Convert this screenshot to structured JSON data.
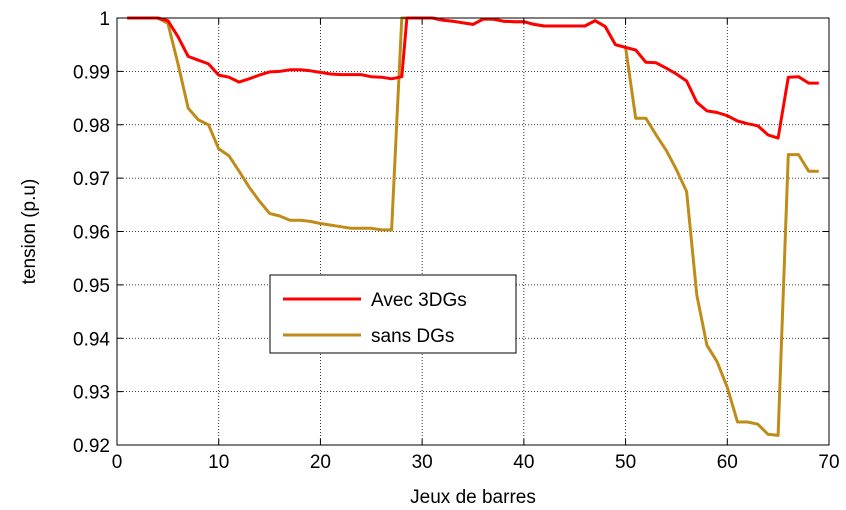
{
  "chart_data": {
    "type": "line",
    "title": "",
    "xlabel": "Jeux de barres",
    "ylabel": "tension (p.u)",
    "xlim": [
      0,
      70
    ],
    "ylim": [
      0.92,
      1.0
    ],
    "xticks": [
      0,
      10,
      20,
      30,
      40,
      50,
      60,
      70
    ],
    "yticks": [
      0.92,
      0.93,
      0.94,
      0.95,
      0.96,
      0.97,
      0.98,
      0.99,
      1.0
    ],
    "xtick_labels": [
      "0",
      "10",
      "20",
      "30",
      "40",
      "50",
      "60",
      "70"
    ],
    "ytick_labels": [
      "0.92",
      "0.93",
      "0.94",
      "0.95",
      "0.96",
      "0.97",
      "0.98",
      "0.99",
      "1"
    ],
    "grid": true,
    "legend_position": "center",
    "series": [
      {
        "name": "Avec 3DGs",
        "color": "#ff0000",
        "points": [
          [
            1,
            1.0
          ],
          [
            2,
            1.0
          ],
          [
            3,
            1.0
          ],
          [
            4,
            1.0
          ],
          [
            5,
            0.9995
          ],
          [
            6,
            0.9965
          ],
          [
            7,
            0.9928
          ],
          [
            8,
            0.9921
          ],
          [
            9,
            0.9914
          ],
          [
            10,
            0.9893
          ],
          [
            11,
            0.9889
          ],
          [
            12,
            0.988
          ],
          [
            13,
            0.9886
          ],
          [
            14,
            0.9893
          ],
          [
            15,
            0.9899
          ],
          [
            16,
            0.99
          ],
          [
            17,
            0.9903
          ],
          [
            18,
            0.9903
          ],
          [
            19,
            0.9901
          ],
          [
            20,
            0.9898
          ],
          [
            21,
            0.9895
          ],
          [
            22,
            0.9894
          ],
          [
            23,
            0.9894
          ],
          [
            24,
            0.9894
          ],
          [
            25,
            0.989
          ],
          [
            26,
            0.9889
          ],
          [
            27,
            0.9886
          ],
          [
            28,
            0.989
          ],
          [
            28.5,
            1.0
          ],
          [
            29,
            1.0
          ],
          [
            30,
            1.0
          ],
          [
            31,
            1.0
          ],
          [
            32,
            0.9996
          ],
          [
            33,
            0.9994
          ],
          [
            34,
            0.9991
          ],
          [
            35,
            0.9988
          ],
          [
            36,
            0.9998
          ],
          [
            37,
            0.9998
          ],
          [
            38,
            0.9994
          ],
          [
            39,
            0.9993
          ],
          [
            40,
            0.9993
          ],
          [
            41,
            0.9988
          ],
          [
            42,
            0.9985
          ],
          [
            43,
            0.9985
          ],
          [
            44,
            0.9985
          ],
          [
            45,
            0.9985
          ],
          [
            46,
            0.9985
          ],
          [
            47,
            0.9995
          ],
          [
            48,
            0.9984
          ],
          [
            49,
            0.995
          ],
          [
            50,
            0.9945
          ],
          [
            51,
            0.994
          ],
          [
            52,
            0.9917
          ],
          [
            53,
            0.9916
          ],
          [
            54,
            0.9906
          ],
          [
            55,
            0.9895
          ],
          [
            56,
            0.9882
          ],
          [
            57,
            0.9842
          ],
          [
            58,
            0.9826
          ],
          [
            59,
            0.9823
          ],
          [
            60,
            0.9817
          ],
          [
            61,
            0.9807
          ],
          [
            62,
            0.9802
          ],
          [
            63,
            0.9798
          ],
          [
            64,
            0.9781
          ],
          [
            65,
            0.9775
          ],
          [
            66,
            0.9889
          ],
          [
            67,
            0.989
          ],
          [
            68,
            0.9878
          ],
          [
            69,
            0.9878
          ]
        ]
      },
      {
        "name": "sans DGs",
        "color": "#bf8c1a",
        "points": [
          [
            1,
            1.0
          ],
          [
            2,
            1.0
          ],
          [
            3,
            1.0
          ],
          [
            4,
            1.0
          ],
          [
            5,
            0.999
          ],
          [
            6,
            0.9914
          ],
          [
            7,
            0.9831
          ],
          [
            8,
            0.9809
          ],
          [
            9,
            0.98
          ],
          [
            10,
            0.9755
          ],
          [
            11,
            0.9742
          ],
          [
            12,
            0.9713
          ],
          [
            13,
            0.9683
          ],
          [
            14,
            0.9657
          ],
          [
            15,
            0.9634
          ],
          [
            16,
            0.9629
          ],
          [
            17,
            0.9621
          ],
          [
            18,
            0.9621
          ],
          [
            19,
            0.9619
          ],
          [
            20,
            0.9615
          ],
          [
            21,
            0.9612
          ],
          [
            22,
            0.9609
          ],
          [
            23,
            0.9606
          ],
          [
            24,
            0.9606
          ],
          [
            25,
            0.9606
          ],
          [
            26,
            0.9603
          ],
          [
            27,
            0.9603
          ],
          [
            28,
            1.0
          ],
          [
            29,
            1.0
          ],
          [
            30,
            1.0
          ],
          [
            31,
            1.0
          ],
          [
            32,
            0.9996
          ],
          [
            33,
            0.9994
          ],
          [
            34,
            0.9991
          ],
          [
            35,
            0.9988
          ],
          [
            36,
            0.9998
          ],
          [
            37,
            0.9998
          ],
          [
            38,
            0.9994
          ],
          [
            39,
            0.9993
          ],
          [
            40,
            0.9993
          ],
          [
            41,
            0.9988
          ],
          [
            42,
            0.9985
          ],
          [
            43,
            0.9985
          ],
          [
            44,
            0.9985
          ],
          [
            45,
            0.9985
          ],
          [
            46,
            0.9985
          ],
          [
            47,
            0.9995
          ],
          [
            48,
            0.9984
          ],
          [
            49,
            0.995
          ],
          [
            50,
            0.9945
          ],
          [
            51,
            0.9812
          ],
          [
            52,
            0.9812
          ],
          [
            53,
            0.9781
          ],
          [
            54,
            0.9752
          ],
          [
            55,
            0.9716
          ],
          [
            56,
            0.9675
          ],
          [
            57,
            0.9481
          ],
          [
            58,
            0.9387
          ],
          [
            59,
            0.9356
          ],
          [
            60,
            0.9308
          ],
          [
            61,
            0.9243
          ],
          [
            62,
            0.9243
          ],
          [
            63,
            0.9239
          ],
          [
            64,
            0.922
          ],
          [
            65,
            0.9218
          ],
          [
            66,
            0.9744
          ],
          [
            67,
            0.9744
          ],
          [
            68,
            0.9713
          ],
          [
            69,
            0.9713
          ]
        ]
      }
    ]
  }
}
